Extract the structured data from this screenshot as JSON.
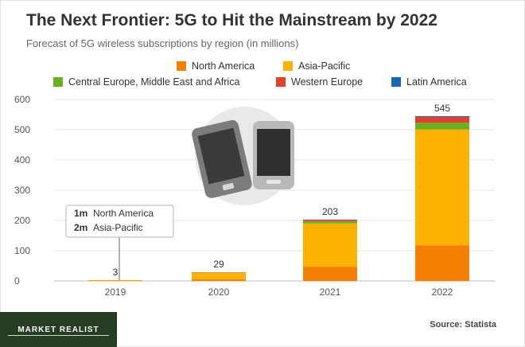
{
  "chart_data": {
    "type": "bar",
    "stacked": true,
    "title": "The Next Frontier: 5G to Hit the Mainstream by 2022",
    "subtitle": "Forecast of 5G wireless subscriptions by region (in millions)",
    "categories": [
      "2019",
      "2020",
      "2021",
      "2022"
    ],
    "ylim": [
      0,
      600
    ],
    "yticks": [
      "0",
      "100",
      "200",
      "300",
      "400",
      "500",
      "600"
    ],
    "series": [
      {
        "name": "North America",
        "color": "#f47f00",
        "values": [
          1,
          6,
          47,
          118
        ]
      },
      {
        "name": "Asia-Pacific",
        "color": "#fbb200",
        "values": [
          2,
          21,
          143,
          383
        ]
      },
      {
        "name": "Central Europe, Middle East and Africa",
        "color": "#6ab023",
        "values": [
          0,
          1,
          7,
          22
        ]
      },
      {
        "name": "Western Europe",
        "color": "#e2412c",
        "values": [
          0,
          1,
          5,
          19
        ]
      },
      {
        "name": "Latin America",
        "color": "#1b65b3",
        "values": [
          0,
          0,
          1,
          3
        ]
      }
    ],
    "totals": [
      "3",
      "29",
      "203",
      "545"
    ],
    "grid": true,
    "legend_position": "top"
  },
  "annotation": {
    "row1_value": "1m",
    "row1_label": "North America",
    "row2_value": "2m",
    "row2_label": "Asia-Pacific"
  },
  "illustration": {
    "icon": "smartphones-icon"
  },
  "source": "Source: Statista",
  "brand": {
    "name": "MARKET REALIST",
    "color": "#263d24"
  }
}
